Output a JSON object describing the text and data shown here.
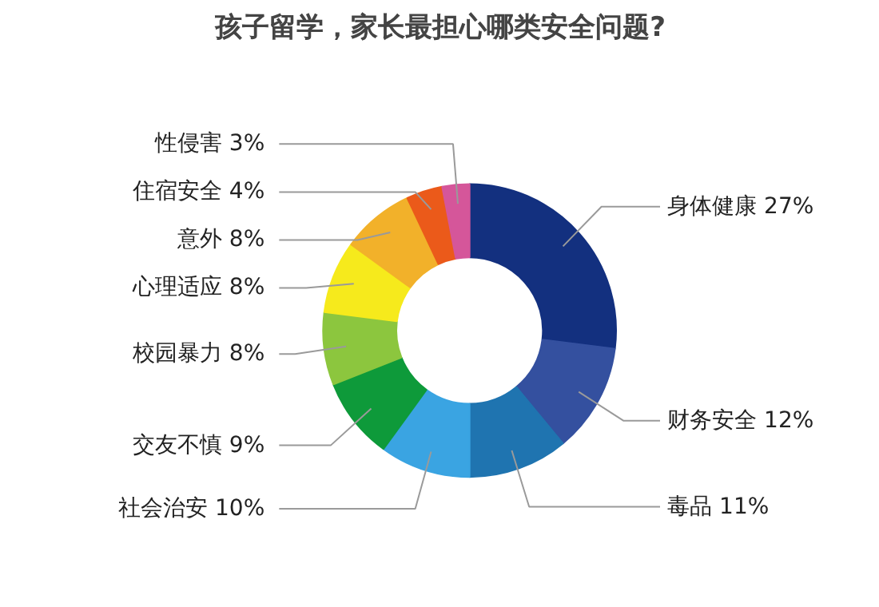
{
  "chart_data": {
    "type": "donut",
    "title": "孩子留学，家长最担心哪类安全问题?",
    "categories": [
      "身体健康",
      "财务安全",
      "毒品",
      "社会治安",
      "交友不慎",
      "校园暴力",
      "心理适应",
      "意外",
      "住宿安全",
      "性侵害"
    ],
    "values": [
      27,
      12,
      11,
      10,
      9,
      8,
      8,
      8,
      4,
      3
    ],
    "value_labels": [
      "27%",
      "12%",
      "11%",
      "10%",
      "9%",
      "8%",
      "8%",
      "8%",
      "4%",
      "3%"
    ],
    "colors": [
      "#13307f",
      "#34509f",
      "#1f74b0",
      "#3aa4e2",
      "#0e9a3a",
      "#8cc63e",
      "#f6ea1c",
      "#f2b12a",
      "#eb5a1a",
      "#d5569a"
    ],
    "legend": false
  }
}
